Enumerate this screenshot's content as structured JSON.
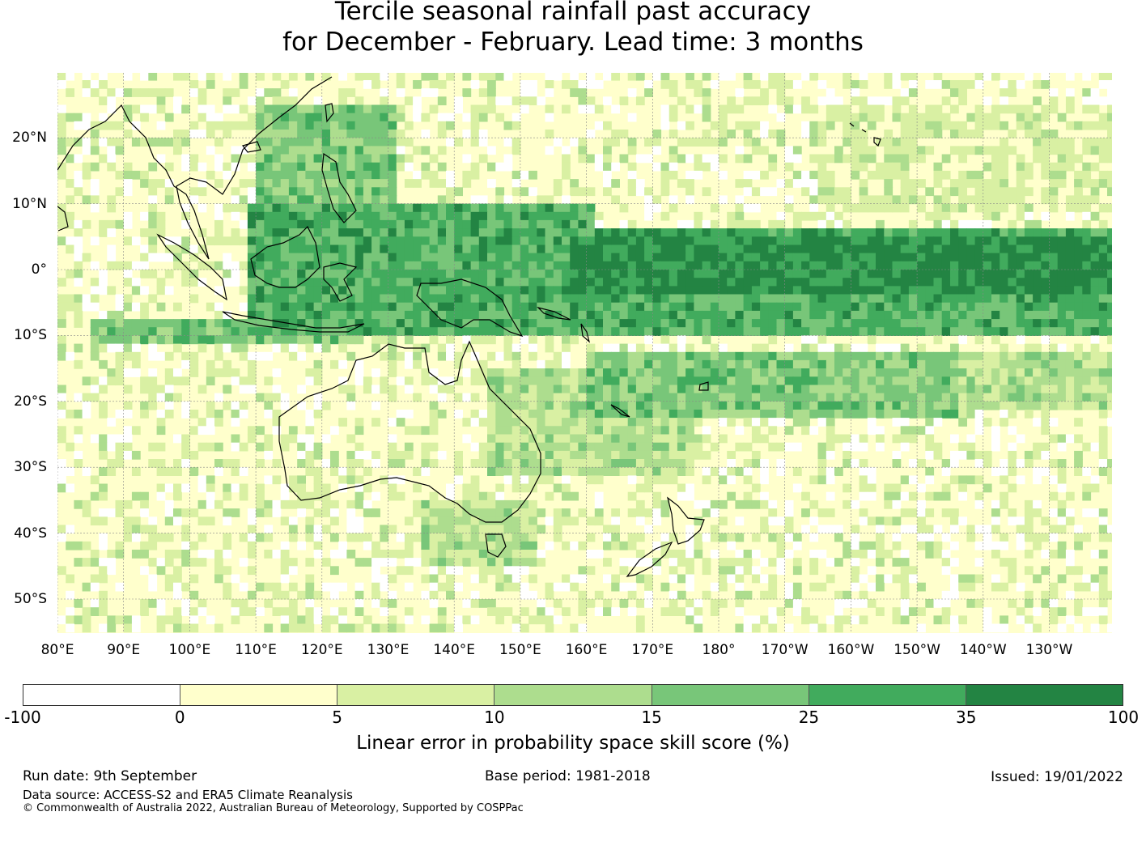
{
  "title_line1": "Tercile seasonal rainfall past accuracy",
  "title_line2": "for December - February. Lead time: 3 months",
  "map": {
    "lon_range": [
      80,
      240
    ],
    "lat_range": [
      -55,
      30
    ],
    "lat_labels": [
      {
        "lat": 20,
        "label": "20°N"
      },
      {
        "lat": 10,
        "label": "10°N"
      },
      {
        "lat": 0,
        "label": "0°"
      },
      {
        "lat": -10,
        "label": "10°S"
      },
      {
        "lat": -20,
        "label": "20°S"
      },
      {
        "lat": -30,
        "label": "30°S"
      },
      {
        "lat": -40,
        "label": "40°S"
      },
      {
        "lat": -50,
        "label": "50°S"
      }
    ],
    "lon_labels": [
      {
        "lon": 80,
        "label": "80°E"
      },
      {
        "lon": 90,
        "label": "90°E"
      },
      {
        "lon": 100,
        "label": "100°E"
      },
      {
        "lon": 110,
        "label": "110°E"
      },
      {
        "lon": 120,
        "label": "120°E"
      },
      {
        "lon": 130,
        "label": "130°E"
      },
      {
        "lon": 140,
        "label": "140°E"
      },
      {
        "lon": 150,
        "label": "150°E"
      },
      {
        "lon": 160,
        "label": "160°E"
      },
      {
        "lon": 170,
        "label": "170°E"
      },
      {
        "lon": 180,
        "label": "180°"
      },
      {
        "lon": 190,
        "label": "170°W"
      },
      {
        "lon": 200,
        "label": "160°W"
      },
      {
        "lon": 210,
        "label": "150°W"
      },
      {
        "lon": 220,
        "label": "140°W"
      },
      {
        "lon": 230,
        "label": "130°W"
      }
    ],
    "grid_lines": true,
    "skill_regions": [
      {
        "name": "equatorial-pacific-core",
        "lon": [
          157,
          240
        ],
        "lat": [
          -3,
          6
        ],
        "category": 7
      },
      {
        "name": "equatorial-pacific-band",
        "lon": [
          150,
          240
        ],
        "lat": [
          -9,
          7
        ],
        "category": 6
      },
      {
        "name": "maritime-continent",
        "lon": [
          108,
          160
        ],
        "lat": [
          -9,
          10
        ],
        "category": 6
      },
      {
        "name": "indian-ocean-band",
        "lon": [
          84,
          125
        ],
        "lat": [
          -11,
          -7
        ],
        "category": 5
      },
      {
        "name": "spcz",
        "lon": [
          160,
          215
        ],
        "lat": [
          -22,
          -12
        ],
        "category": 5
      },
      {
        "name": "east-australia",
        "lon": [
          145,
          175
        ],
        "lat": [
          -30,
          -15
        ],
        "category": 4
      },
      {
        "name": "south-china-sea",
        "lon": [
          110,
          130
        ],
        "lat": [
          5,
          25
        ],
        "category": 5
      },
      {
        "name": "southeast-australia",
        "lon": [
          135,
          152
        ],
        "lat": [
          -44,
          -34
        ],
        "category": 4
      },
      {
        "name": "northeast-pacific",
        "lon": [
          195,
          240
        ],
        "lat": [
          10,
          25
        ],
        "category": 3
      },
      {
        "name": "south-pacific-band",
        "lon": [
          205,
          240
        ],
        "lat": [
          -20,
          -12
        ],
        "category": 4
      }
    ]
  },
  "legend": {
    "colors": [
      "#ffffff",
      "#ffffcc",
      "#d9f0a3",
      "#addd8e",
      "#78c679",
      "#41ab5d",
      "#238443"
    ],
    "ticks": [
      "-100",
      "0",
      "5",
      "10",
      "15",
      "25",
      "35",
      "100"
    ],
    "label": "Linear error in probability space skill score (%)"
  },
  "footer": {
    "run_date": "Run date: 9th September",
    "base_period": "Base period: 1981-2018",
    "issued": "Issued: 19/01/2022",
    "data_source": "Data source: ACCESS-S2 and ERA5 Climate Reanalysis",
    "copyright": "© Commonwealth of Australia 2022, Australian Bureau of Meteorology, Supported by COSPPac"
  }
}
